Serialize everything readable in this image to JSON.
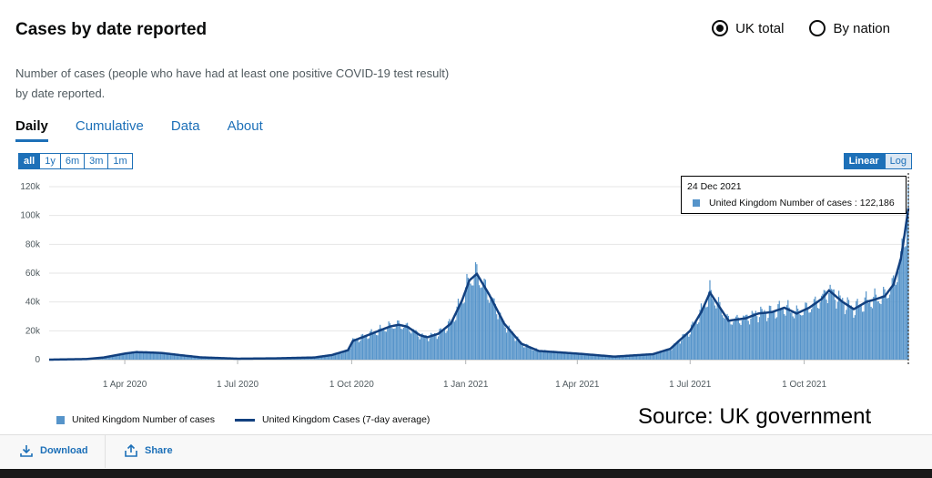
{
  "header": {
    "title": "Cases by date reported",
    "description": "Number of cases (people who have had at least one positive COVID-19 test result) by date reported.",
    "radio_options": [
      "UK total",
      "By nation"
    ],
    "radio_selected": "UK total"
  },
  "tabs": [
    "Daily",
    "Cumulative",
    "Data",
    "About"
  ],
  "active_tab": "Daily",
  "range_buttons": [
    "all",
    "1y",
    "6m",
    "3m",
    "1m"
  ],
  "range_selected": "all",
  "scale_buttons": [
    "Linear",
    "Log"
  ],
  "scale_selected": "Linear",
  "tooltip": {
    "date": "24 Dec 2021",
    "series": "United Kingdom Number of cases",
    "value": "122,186"
  },
  "source_text": "Source: UK government",
  "footer": {
    "download_label": "Download",
    "share_label": "Share"
  },
  "colors": {
    "bars": "#5694ca",
    "line": "#12407f",
    "accent": "#1d70b8"
  },
  "chart_data": {
    "type": "bar",
    "title": "Cases by date reported",
    "xlabel": "",
    "ylabel": "",
    "ylim": [
      0,
      120000
    ],
    "y_ticks": [
      0,
      20000,
      40000,
      60000,
      80000,
      100000,
      120000
    ],
    "y_tick_labels": [
      "0",
      "20k",
      "40k",
      "60k",
      "80k",
      "100k",
      "120k"
    ],
    "x_range": [
      "2020-01-31",
      "2021-12-24"
    ],
    "x_ticks": [
      "2020-04-01",
      "2020-07-01",
      "2020-10-01",
      "2021-01-01",
      "2021-04-01",
      "2021-07-01",
      "2021-10-01"
    ],
    "x_tick_labels": [
      "1 Apr 2020",
      "1 Jul 2020",
      "1 Oct 2020",
      "1 Jan 2021",
      "1 Apr 2021",
      "1 Jul 2021",
      "1 Oct 2021"
    ],
    "legend": [
      "United Kingdom Number of cases",
      "United Kingdom Cases (7-day average)"
    ],
    "legend_position": "bottom",
    "series": [
      {
        "name": "United Kingdom Cases (7-day average)",
        "kind": "line",
        "x": [
          "2020-01-31",
          "2020-03-01",
          "2020-03-15",
          "2020-04-01",
          "2020-04-10",
          "2020-04-20",
          "2020-05-01",
          "2020-05-15",
          "2020-06-01",
          "2020-07-01",
          "2020-08-01",
          "2020-09-01",
          "2020-09-15",
          "2020-09-28",
          "2020-10-02",
          "2020-10-10",
          "2020-10-20",
          "2020-11-01",
          "2020-11-08",
          "2020-11-15",
          "2020-11-25",
          "2020-12-01",
          "2020-12-10",
          "2020-12-20",
          "2020-12-29",
          "2021-01-04",
          "2021-01-10",
          "2021-01-20",
          "2021-02-01",
          "2021-02-15",
          "2021-03-01",
          "2021-03-15",
          "2021-04-01",
          "2021-05-01",
          "2021-06-01",
          "2021-06-15",
          "2021-07-01",
          "2021-07-10",
          "2021-07-17",
          "2021-07-22",
          "2021-08-01",
          "2021-08-15",
          "2021-08-25",
          "2021-09-05",
          "2021-09-15",
          "2021-09-25",
          "2021-10-05",
          "2021-10-15",
          "2021-10-21",
          "2021-11-01",
          "2021-11-10",
          "2021-11-20",
          "2021-11-28",
          "2021-12-05",
          "2021-12-12",
          "2021-12-18",
          "2021-12-21",
          "2021-12-24"
        ],
        "values": [
          0,
          400,
          1500,
          4200,
          5200,
          5000,
          4600,
          3200,
          1600,
          650,
          900,
          1500,
          3200,
          6500,
          13000,
          15600,
          19000,
          23000,
          24200,
          22800,
          17000,
          15500,
          18000,
          25000,
          41000,
          55000,
          59500,
          45000,
          25000,
          11000,
          6000,
          5200,
          4200,
          2100,
          3800,
          7500,
          20000,
          33000,
          46500,
          40000,
          27000,
          28700,
          32000,
          33000,
          36000,
          32000,
          36000,
          42000,
          48000,
          40000,
          35000,
          40000,
          42000,
          44000,
          52000,
          70000,
          87000,
          105000
        ]
      },
      {
        "name": "United Kingdom Number of cases",
        "kind": "bar",
        "note": "daily bars; final bar 24 Dec 2021 = 122186",
        "last_value": 122186
      }
    ]
  }
}
